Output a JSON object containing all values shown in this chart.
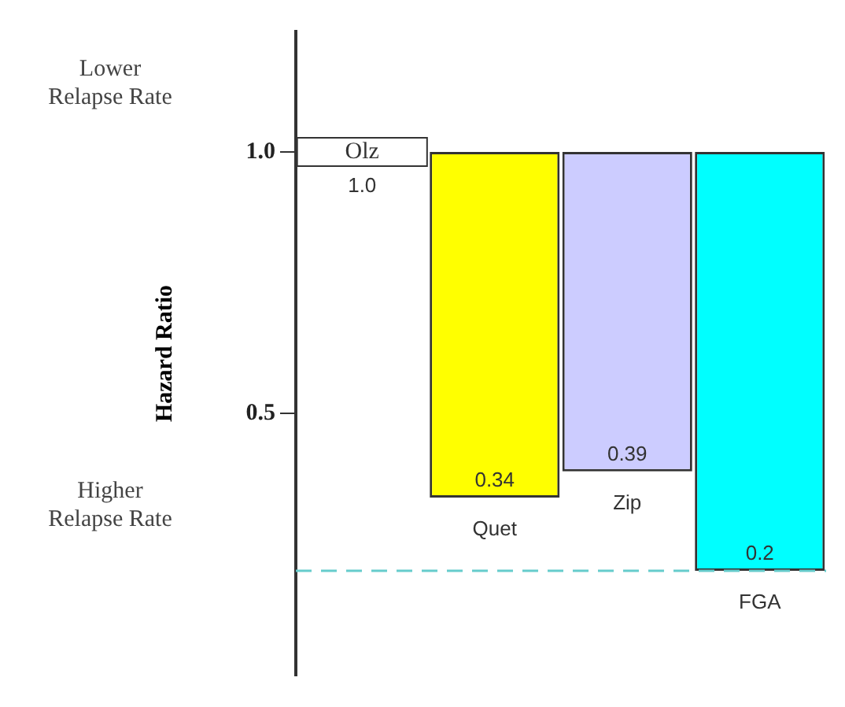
{
  "chart_data": {
    "type": "bar",
    "ylabel": "Hazard Ratio",
    "categories": [
      "Olz",
      "Quet",
      "Zip",
      "FGA"
    ],
    "values": [
      null,
      -0.66,
      -0.61,
      -0.8
    ],
    "base": [
      null,
      1,
      1,
      1
    ],
    "colors": [
      "#ffffff",
      "#ffff00",
      "#ccccff",
      "#00ffff"
    ],
    "ylim": [
      0,
      1.23
    ],
    "yticks": [
      0.5,
      {
        "value": 1.0,
        "label": "1.0"
      }
    ],
    "tick_labels": "y",
    "grid": false,
    "legend": false,
    "ref_lines": [
      {
        "axis": "y",
        "value": 0.2,
        "color": "#66cccc",
        "line_style": "dashed"
      }
    ],
    "annotations": [
      "Lower Relapse Rate",
      "Higher Relapse Rate",
      "1.0",
      {
        "text": "0.34",
        "x": "Quet",
        "y": 0.34
      },
      {
        "text": "0.39",
        "x": "Zip",
        "y": 0.39
      },
      {
        "text": "0.2",
        "x": "FGA",
        "y": 0.2
      }
    ]
  }
}
